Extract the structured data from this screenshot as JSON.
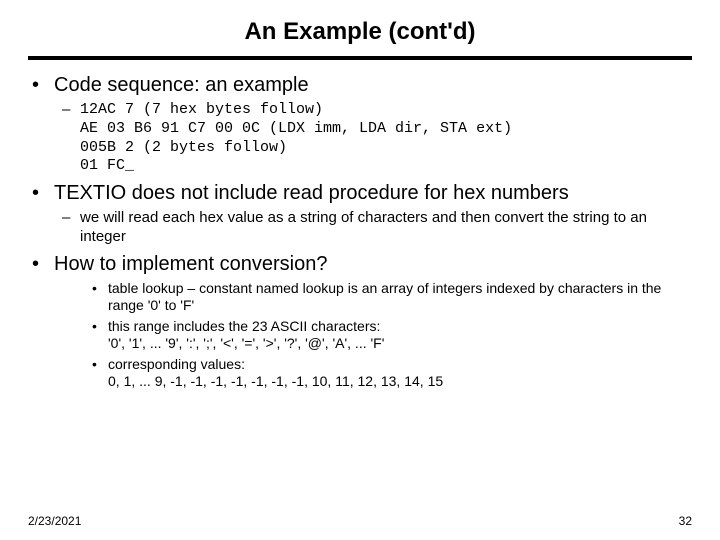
{
  "title": "An Example (cont'd)",
  "bullets": {
    "b1_1": "Code sequence: an example",
    "b2_1": "12AC 7 (7 hex bytes follow)\nAE 03 B6 91 C7 00 0C (LDX imm, LDA dir, STA ext)\n005B 2 (2 bytes follow)\n01 FC_",
    "b1_2": "TEXTIO does not include read procedure for hex numbers",
    "b2_2": "we will read each hex value as a string of characters and then convert the string to an integer",
    "b1_3": "How to implement conversion?",
    "b3_1": "table lookup – constant named lookup is an array of integers indexed by characters in the range '0' to 'F'",
    "b3_2": "this range includes the 23 ASCII characters:\n'0', '1', ... '9', ':', ';', '<', '=', '>', '?', '@', 'A', ... 'F'",
    "b3_3": "corresponding values:\n0, 1, ... 9, -1, -1, -1, -1, -1, -1, -1, 10, 11, 12, 13, 14, 15"
  },
  "footer": {
    "date": "2/23/2021",
    "page": "32"
  },
  "colors": {
    "text": "#000000",
    "background": "#ffffff",
    "rule": "#000000"
  }
}
